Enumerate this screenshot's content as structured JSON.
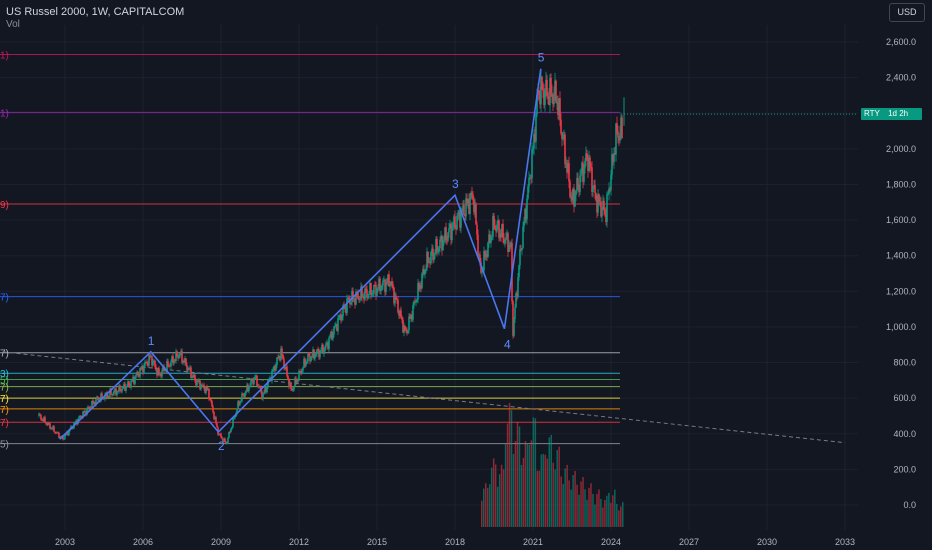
{
  "header": {
    "title": "US Russel 2000, 1W, CAPITALCOM",
    "indicator": "Vol",
    "currency": "USD"
  },
  "price_label": {
    "symbol": "RTY",
    "countdown": "1d 2h"
  },
  "colors": {
    "background": "#131722",
    "up": "#089981",
    "down": "#f23645",
    "wave": "#4a77f0"
  },
  "chart_data": {
    "type": "line",
    "x_axis": {
      "ticks": [
        "2003",
        "2006",
        "2009",
        "2012",
        "2015",
        "2018",
        "2021",
        "2024",
        "2027",
        "2030",
        "2033"
      ]
    },
    "y_axis": {
      "ticks": [
        "2,600.0",
        "2,400.0",
        "2,200.0",
        "2,000.0",
        "1,800.0",
        "1,600.0",
        "1,400.0",
        "1,200.0",
        "1,000.0",
        "800.0",
        "600.0",
        "400.0",
        "200.0",
        "0.0"
      ],
      "range": [
        -80,
        2680
      ]
    },
    "price_series": {
      "points": [
        [
          2002.0,
          500
        ],
        [
          2002.5,
          430
        ],
        [
          2002.9,
          370
        ],
        [
          2003.5,
          480
        ],
        [
          2004.2,
          590
        ],
        [
          2005.0,
          640
        ],
        [
          2005.5,
          680
        ],
        [
          2006.3,
          830
        ],
        [
          2006.6,
          730
        ],
        [
          2007.4,
          850
        ],
        [
          2008.0,
          700
        ],
        [
          2008.5,
          640
        ],
        [
          2008.9,
          400
        ],
        [
          2009.2,
          345
        ],
        [
          2009.7,
          580
        ],
        [
          2010.3,
          720
        ],
        [
          2010.6,
          610
        ],
        [
          2011.3,
          860
        ],
        [
          2011.7,
          640
        ],
        [
          2012.3,
          820
        ],
        [
          2013.0,
          880
        ],
        [
          2013.9,
          1150
        ],
        [
          2014.8,
          1200
        ],
        [
          2015.5,
          1260
        ],
        [
          2016.1,
          960
        ],
        [
          2016.9,
          1360
        ],
        [
          2017.9,
          1560
        ],
        [
          2018.7,
          1740
        ],
        [
          2018.98,
          1300
        ],
        [
          2019.5,
          1580
        ],
        [
          2020.15,
          1450
        ],
        [
          2020.22,
          960
        ],
        [
          2020.5,
          1400
        ],
        [
          2021.0,
          1990
        ],
        [
          2021.2,
          2330
        ],
        [
          2021.9,
          2300
        ],
        [
          2022.2,
          2000
        ],
        [
          2022.5,
          1700
        ],
        [
          2023.1,
          1960
        ],
        [
          2023.4,
          1720
        ],
        [
          2023.8,
          1640
        ],
        [
          2024.2,
          2080
        ],
        [
          2024.45,
          2100
        ]
      ]
    },
    "wave_labels": [
      {
        "label": "1",
        "x": 2006.3,
        "y": 860
      },
      {
        "label": "2",
        "x": 2009.0,
        "y": 410
      },
      {
        "label": "3",
        "x": 2018.0,
        "y": 1740
      },
      {
        "label": "4",
        "x": 2020.0,
        "y": 980
      },
      {
        "label": "5",
        "x": 2021.3,
        "y": 2450
      }
    ],
    "wave_path": [
      [
        2002.8,
        370
      ],
      [
        2006.3,
        860
      ],
      [
        2008.9,
        410
      ],
      [
        2018.0,
        1740
      ],
      [
        2019.9,
        990
      ],
      [
        2021.3,
        2450
      ]
    ],
    "horizontal_levels": [
      {
        "y": 2530,
        "color": "#c2185b",
        "edge_label": "1)"
      },
      {
        "y": 2205,
        "color": "#9c27b0",
        "edge_label": "1)"
      },
      {
        "y": 1690,
        "color": "#f23645",
        "edge_label": "9)"
      },
      {
        "y": 1170,
        "color": "#2962ff",
        "edge_label": "7)"
      },
      {
        "y": 855,
        "color": "#b2b5be",
        "edge_label": "7)"
      },
      {
        "y": 740,
        "color": "#26c6da",
        "edge_label": "3)"
      },
      {
        "y": 705,
        "color": "#4caf50",
        "edge_label": "5)"
      },
      {
        "y": 665,
        "color": "#8bc34a",
        "edge_label": "7)"
      },
      {
        "y": 600,
        "color": "#ffeb3b",
        "edge_label": "7)"
      },
      {
        "y": 540,
        "color": "#ff9800",
        "edge_label": "7)"
      },
      {
        "y": 465,
        "color": "#f23645",
        "edge_label": "7)"
      },
      {
        "y": 345,
        "color": "#9598a1",
        "edge_label": "5)"
      }
    ],
    "trend_line": [
      [
        2000.6,
        860
      ],
      [
        2033.0,
        350
      ]
    ],
    "volume": {
      "start": 2019.0,
      "end": 2024.5,
      "relative_heights": [
        0.35,
        0.55,
        0.5,
        1.0,
        0.85,
        0.7,
        0.9,
        0.6,
        0.75,
        0.65,
        0.5,
        0.45,
        0.4,
        0.35,
        0.3,
        0.25,
        0.3,
        0.2
      ]
    }
  }
}
